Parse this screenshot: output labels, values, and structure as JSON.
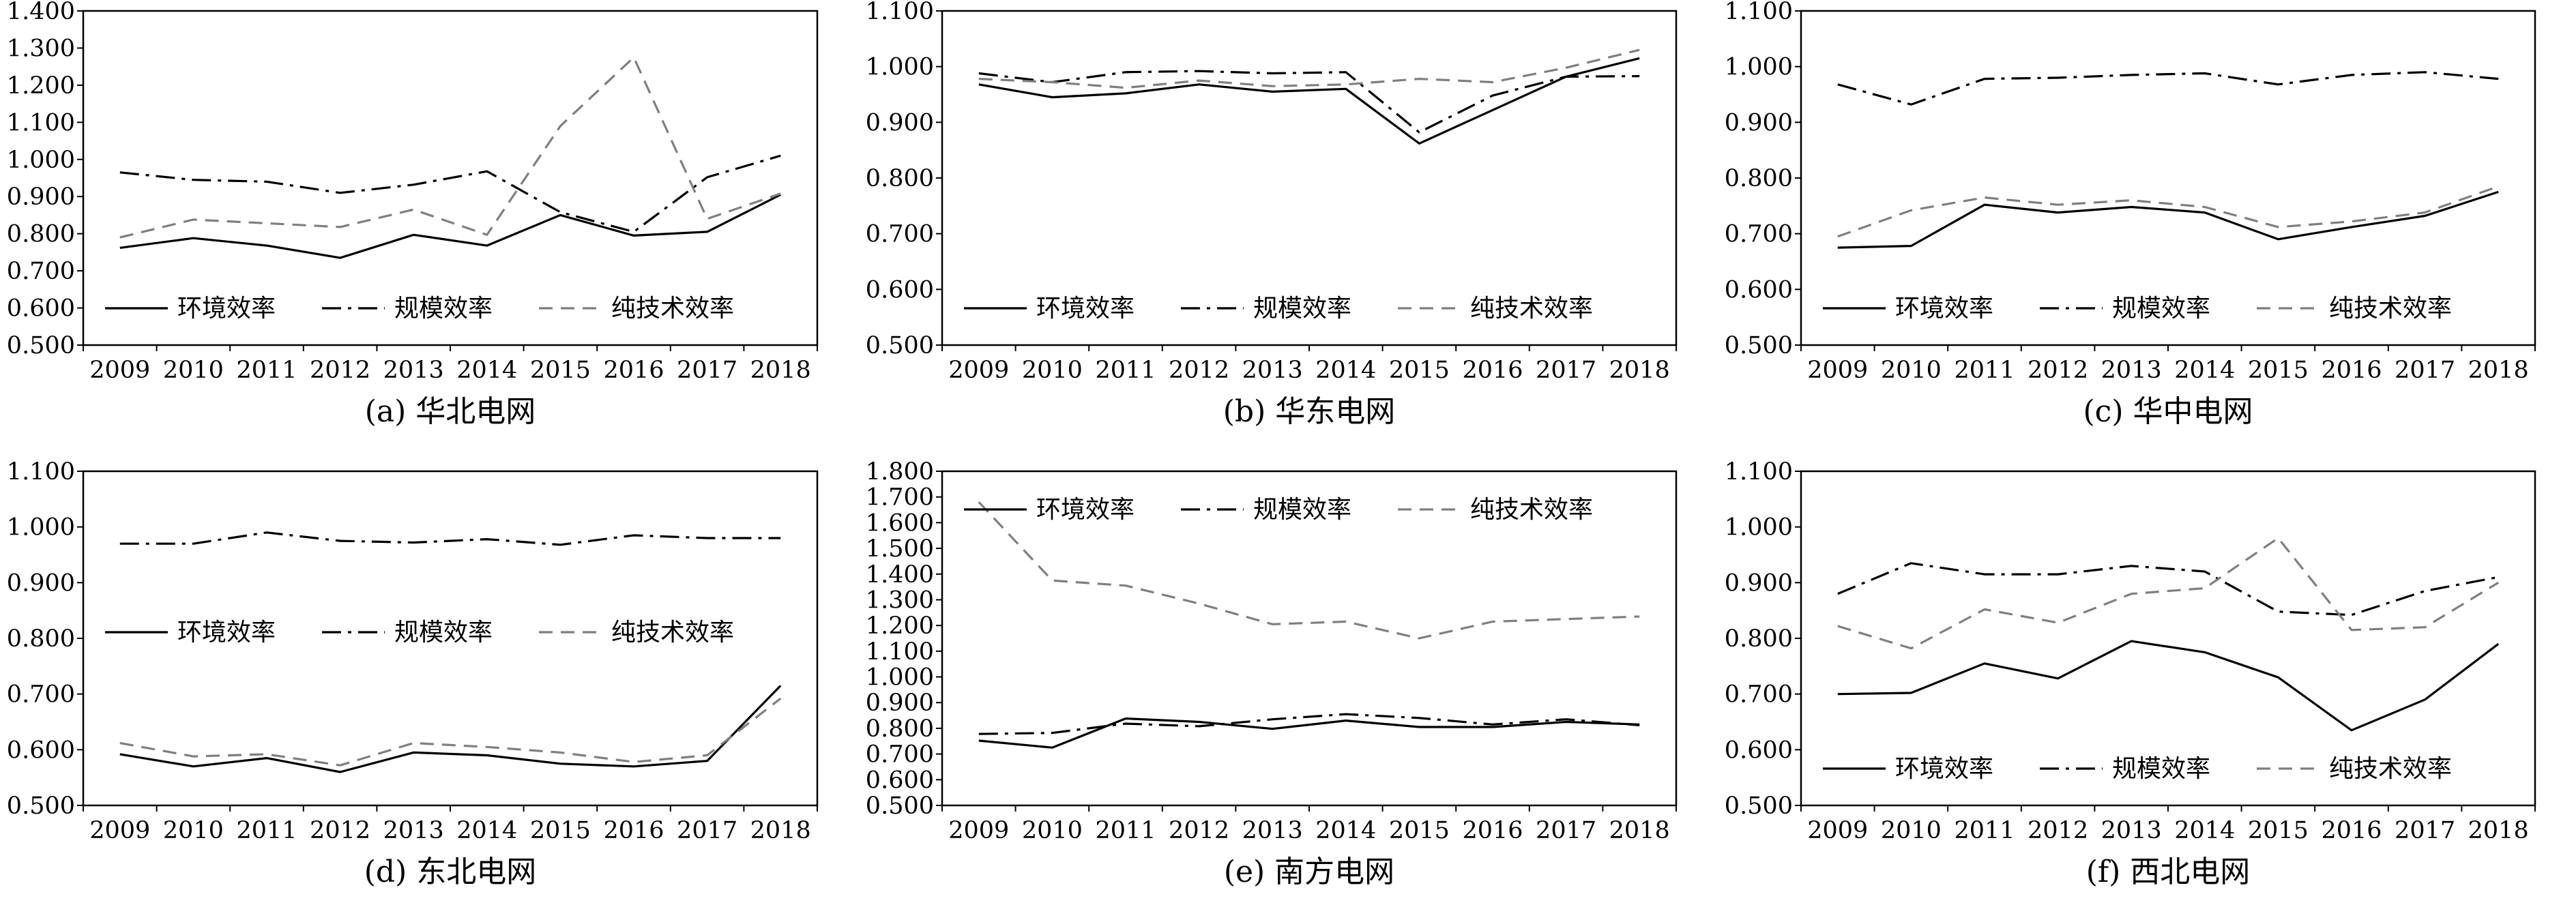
{
  "chart_data": [
    {
      "type": "line",
      "title": "(a) 华北电网",
      "x": [
        "2009",
        "2010",
        "2011",
        "2012",
        "2013",
        "2014",
        "2015",
        "2016",
        "2017",
        "2018"
      ],
      "ylim": [
        0.5,
        1.4
      ],
      "yticks": [
        "0.500",
        "0.600",
        "0.700",
        "0.800",
        "0.900",
        "1.000",
        "1.100",
        "1.200",
        "1.300",
        "1.400"
      ],
      "legend": "bottom",
      "series": [
        {
          "name": "环境效率",
          "style": "solid",
          "values": [
            0.762,
            0.788,
            0.768,
            0.735,
            0.797,
            0.768,
            0.85,
            0.795,
            0.805,
            0.905
          ]
        },
        {
          "name": "规模效率",
          "style": "dashdot",
          "values": [
            0.965,
            0.945,
            0.94,
            0.91,
            0.932,
            0.968,
            0.858,
            0.805,
            0.952,
            1.01
          ]
        },
        {
          "name": "纯技术效率",
          "style": "dashed",
          "values": [
            0.79,
            0.838,
            0.828,
            0.818,
            0.865,
            0.797,
            1.09,
            1.275,
            0.84,
            0.908
          ]
        }
      ]
    },
    {
      "type": "line",
      "title": "(b) 华东电网",
      "x": [
        "2009",
        "2010",
        "2011",
        "2012",
        "2013",
        "2014",
        "2015",
        "2016",
        "2017",
        "2018"
      ],
      "ylim": [
        0.5,
        1.1
      ],
      "yticks": [
        "0.500",
        "0.600",
        "0.700",
        "0.800",
        "0.900",
        "1.000",
        "1.100"
      ],
      "legend": "bottom",
      "series": [
        {
          "name": "环境效率",
          "style": "solid",
          "values": [
            0.968,
            0.945,
            0.952,
            0.968,
            0.955,
            0.96,
            0.862,
            0.922,
            0.982,
            1.015
          ]
        },
        {
          "name": "规模效率",
          "style": "dashdot",
          "values": [
            0.988,
            0.972,
            0.99,
            0.992,
            0.988,
            0.99,
            0.882,
            0.948,
            0.982,
            0.983
          ]
        },
        {
          "name": "纯技术效率",
          "style": "dashed",
          "values": [
            0.978,
            0.972,
            0.962,
            0.975,
            0.965,
            0.968,
            0.978,
            0.972,
            0.998,
            1.03
          ]
        }
      ]
    },
    {
      "type": "line",
      "title": "(c) 华中电网",
      "x": [
        "2009",
        "2010",
        "2011",
        "2012",
        "2013",
        "2014",
        "2015",
        "2016",
        "2017",
        "2018"
      ],
      "ylim": [
        0.5,
        1.1
      ],
      "yticks": [
        "0.500",
        "0.600",
        "0.700",
        "0.800",
        "0.900",
        "1.000",
        "1.100"
      ],
      "legend": "bottom",
      "series": [
        {
          "name": "环境效率",
          "style": "solid",
          "values": [
            0.675,
            0.678,
            0.752,
            0.738,
            0.748,
            0.738,
            0.69,
            0.712,
            0.732,
            0.775
          ]
        },
        {
          "name": "规模效率",
          "style": "dashdot",
          "values": [
            0.968,
            0.932,
            0.978,
            0.98,
            0.985,
            0.988,
            0.968,
            0.985,
            0.99,
            0.978
          ]
        },
        {
          "name": "纯技术效率",
          "style": "dashed",
          "values": [
            0.695,
            0.742,
            0.765,
            0.752,
            0.76,
            0.748,
            0.712,
            0.722,
            0.738,
            0.785
          ]
        }
      ]
    },
    {
      "type": "line",
      "title": "(d) 东北电网",
      "x": [
        "2009",
        "2010",
        "2011",
        "2012",
        "2013",
        "2014",
        "2015",
        "2016",
        "2017",
        "2018"
      ],
      "ylim": [
        0.5,
        1.1
      ],
      "yticks": [
        "0.500",
        "0.600",
        "0.700",
        "0.800",
        "0.900",
        "1.000",
        "1.100"
      ],
      "legend": "middle",
      "series": [
        {
          "name": "环境效率",
          "style": "solid",
          "values": [
            0.592,
            0.57,
            0.585,
            0.56,
            0.595,
            0.59,
            0.575,
            0.57,
            0.58,
            0.715
          ]
        },
        {
          "name": "规模效率",
          "style": "dashdot",
          "values": [
            0.97,
            0.97,
            0.99,
            0.975,
            0.972,
            0.978,
            0.968,
            0.985,
            0.98,
            0.98
          ]
        },
        {
          "name": "纯技术效率",
          "style": "dashed",
          "values": [
            0.612,
            0.588,
            0.592,
            0.572,
            0.612,
            0.605,
            0.595,
            0.578,
            0.59,
            0.692
          ]
        }
      ]
    },
    {
      "type": "line",
      "title": "(e) 南方电网",
      "x": [
        "2009",
        "2010",
        "2011",
        "2012",
        "2013",
        "2014",
        "2015",
        "2016",
        "2017",
        "2018"
      ],
      "ylim": [
        0.5,
        1.8
      ],
      "yticks": [
        "0.500",
        "0.600",
        "0.700",
        "0.800",
        "0.900",
        "1.000",
        "1.100",
        "1.200",
        "1.300",
        "1.400",
        "1.500",
        "1.600",
        "1.700",
        "1.800"
      ],
      "legend": "top",
      "series": [
        {
          "name": "环境效率",
          "style": "solid",
          "values": [
            0.752,
            0.725,
            0.838,
            0.825,
            0.798,
            0.83,
            0.805,
            0.805,
            0.825,
            0.815
          ]
        },
        {
          "name": "规模效率",
          "style": "dashdot",
          "values": [
            0.778,
            0.782,
            0.818,
            0.808,
            0.835,
            0.855,
            0.84,
            0.815,
            0.835,
            0.812
          ]
        },
        {
          "name": "纯技术效率",
          "style": "dashed",
          "values": [
            1.68,
            1.375,
            1.355,
            1.285,
            1.205,
            1.215,
            1.15,
            1.215,
            1.225,
            1.235
          ]
        }
      ]
    },
    {
      "type": "line",
      "title": "(f) 西北电网",
      "x": [
        "2009",
        "2010",
        "2011",
        "2012",
        "2013",
        "2014",
        "2015",
        "2016",
        "2017",
        "2018"
      ],
      "ylim": [
        0.5,
        1.1
      ],
      "yticks": [
        "0.500",
        "0.600",
        "0.700",
        "0.800",
        "0.900",
        "1.000",
        "1.100"
      ],
      "legend": "bottom",
      "series": [
        {
          "name": "环境效率",
          "style": "solid",
          "values": [
            0.7,
            0.702,
            0.755,
            0.728,
            0.795,
            0.775,
            0.73,
            0.635,
            0.69,
            0.79
          ]
        },
        {
          "name": "规模效率",
          "style": "dashdot",
          "values": [
            0.88,
            0.935,
            0.915,
            0.915,
            0.93,
            0.92,
            0.848,
            0.842,
            0.885,
            0.91
          ]
        },
        {
          "name": "纯技术效率",
          "style": "dashed",
          "values": [
            0.822,
            0.782,
            0.852,
            0.828,
            0.88,
            0.89,
            0.98,
            0.815,
            0.82,
            0.9
          ]
        }
      ]
    }
  ]
}
